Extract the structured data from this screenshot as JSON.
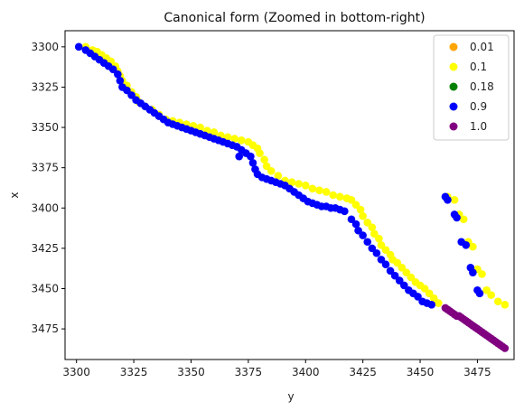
{
  "chart_data": {
    "type": "scatter",
    "title": "Canonical form (Zoomed in bottom-right)",
    "xlabel": "y",
    "ylabel": "x",
    "xlim": [
      3295,
      3491
    ],
    "ylim": [
      3494,
      3290
    ],
    "y_inverted": true,
    "xticks": [
      3300,
      3325,
      3350,
      3375,
      3400,
      3425,
      3450,
      3475
    ],
    "yticks": [
      3300,
      3325,
      3350,
      3375,
      3400,
      3425,
      3450,
      3475
    ],
    "grid": false,
    "legend_position": "top-right",
    "series": [
      {
        "name": "0.01",
        "color": "#ffa500",
        "points": []
      },
      {
        "name": "0.1",
        "color": "#ffff00",
        "points": [
          [
            3304,
            3300
          ],
          [
            3307,
            3302
          ],
          [
            3309,
            3303
          ],
          [
            3311,
            3305
          ],
          [
            3313,
            3307
          ],
          [
            3315,
            3309
          ],
          [
            3317,
            3312
          ],
          [
            3318,
            3315
          ],
          [
            3319,
            3318
          ],
          [
            3320,
            3321
          ],
          [
            3322,
            3324
          ],
          [
            3324,
            3328
          ],
          [
            3326,
            3331
          ],
          [
            3327,
            3334
          ],
          [
            3330,
            3337
          ],
          [
            3333,
            3339
          ],
          [
            3336,
            3342
          ],
          [
            3339,
            3345
          ],
          [
            3342,
            3346
          ],
          [
            3345,
            3347
          ],
          [
            3348,
            3348
          ],
          [
            3351,
            3349
          ],
          [
            3354,
            3350
          ],
          [
            3357,
            3352
          ],
          [
            3360,
            3353
          ],
          [
            3363,
            3355
          ],
          [
            3366,
            3356
          ],
          [
            3369,
            3357
          ],
          [
            3372,
            3358
          ],
          [
            3375,
            3359
          ],
          [
            3377,
            3361
          ],
          [
            3379,
            3363
          ],
          [
            3380,
            3366
          ],
          [
            3382,
            3370
          ],
          [
            3383,
            3374
          ],
          [
            3385,
            3377
          ],
          [
            3388,
            3380
          ],
          [
            3391,
            3383
          ],
          [
            3394,
            3384
          ],
          [
            3397,
            3385
          ],
          [
            3400,
            3386
          ],
          [
            3403,
            3388
          ],
          [
            3406,
            3389
          ],
          [
            3409,
            3390
          ],
          [
            3412,
            3392
          ],
          [
            3415,
            3393
          ],
          [
            3418,
            3394
          ],
          [
            3420,
            3395
          ],
          [
            3422,
            3398
          ],
          [
            3424,
            3401
          ],
          [
            3425,
            3405
          ],
          [
            3427,
            3409
          ],
          [
            3429,
            3412
          ],
          [
            3430,
            3416
          ],
          [
            3432,
            3419
          ],
          [
            3433,
            3423
          ],
          [
            3435,
            3426
          ],
          [
            3437,
            3429
          ],
          [
            3438,
            3432
          ],
          [
            3440,
            3434
          ],
          [
            3442,
            3437
          ],
          [
            3444,
            3440
          ],
          [
            3446,
            3443
          ],
          [
            3448,
            3446
          ],
          [
            3450,
            3448
          ],
          [
            3452,
            3450
          ],
          [
            3454,
            3453
          ],
          [
            3456,
            3456
          ],
          [
            3458,
            3459
          ],
          [
            3462,
            3393
          ],
          [
            3465,
            3395
          ],
          [
            3467,
            3404
          ],
          [
            3469,
            3407
          ],
          [
            3471,
            3421
          ],
          [
            3473,
            3424
          ],
          [
            3475,
            3438
          ],
          [
            3477,
            3441
          ],
          [
            3479,
            3451
          ],
          [
            3481,
            3454
          ],
          [
            3484,
            3458
          ],
          [
            3487,
            3460
          ]
        ]
      },
      {
        "name": "0.18",
        "color": "#008000",
        "points": []
      },
      {
        "name": "0.9",
        "color": "#0000ff",
        "points": [
          [
            3301,
            3300
          ],
          [
            3304,
            3302
          ],
          [
            3306,
            3304
          ],
          [
            3308,
            3306
          ],
          [
            3310,
            3308
          ],
          [
            3312,
            3310
          ],
          [
            3314,
            3312
          ],
          [
            3316,
            3314
          ],
          [
            3318,
            3317
          ],
          [
            3319,
            3321
          ],
          [
            3320,
            3325
          ],
          [
            3322,
            3327
          ],
          [
            3324,
            3330
          ],
          [
            3326,
            3333
          ],
          [
            3328,
            3335
          ],
          [
            3330,
            3337
          ],
          [
            3332,
            3339
          ],
          [
            3334,
            3341
          ],
          [
            3336,
            3343
          ],
          [
            3338,
            3345
          ],
          [
            3340,
            3347
          ],
          [
            3342,
            3348
          ],
          [
            3344,
            3349
          ],
          [
            3346,
            3350
          ],
          [
            3348,
            3351
          ],
          [
            3350,
            3352
          ],
          [
            3352,
            3353
          ],
          [
            3354,
            3354
          ],
          [
            3356,
            3355
          ],
          [
            3358,
            3356
          ],
          [
            3360,
            3357
          ],
          [
            3362,
            3358
          ],
          [
            3364,
            3359
          ],
          [
            3366,
            3360
          ],
          [
            3368,
            3361
          ],
          [
            3370,
            3362
          ],
          [
            3371,
            3368
          ],
          [
            3372,
            3364
          ],
          [
            3374,
            3366
          ],
          [
            3376,
            3368
          ],
          [
            3377,
            3372
          ],
          [
            3378,
            3376
          ],
          [
            3379,
            3379
          ],
          [
            3381,
            3381
          ],
          [
            3383,
            3382
          ],
          [
            3385,
            3383
          ],
          [
            3387,
            3384
          ],
          [
            3389,
            3385
          ],
          [
            3391,
            3386
          ],
          [
            3393,
            3388
          ],
          [
            3395,
            3390
          ],
          [
            3397,
            3392
          ],
          [
            3399,
            3394
          ],
          [
            3401,
            3396
          ],
          [
            3403,
            3397
          ],
          [
            3405,
            3398
          ],
          [
            3407,
            3399
          ],
          [
            3409,
            3399
          ],
          [
            3411,
            3400
          ],
          [
            3413,
            3400
          ],
          [
            3415,
            3401
          ],
          [
            3417,
            3402
          ],
          [
            3420,
            3407
          ],
          [
            3422,
            3410
          ],
          [
            3423,
            3414
          ],
          [
            3425,
            3417
          ],
          [
            3427,
            3421
          ],
          [
            3429,
            3425
          ],
          [
            3431,
            3428
          ],
          [
            3433,
            3432
          ],
          [
            3435,
            3435
          ],
          [
            3437,
            3439
          ],
          [
            3439,
            3442
          ],
          [
            3441,
            3445
          ],
          [
            3443,
            3448
          ],
          [
            3445,
            3451
          ],
          [
            3447,
            3453
          ],
          [
            3449,
            3455
          ],
          [
            3451,
            3458
          ],
          [
            3453,
            3459
          ],
          [
            3455,
            3460
          ],
          [
            3461,
            3393
          ],
          [
            3462,
            3395
          ],
          [
            3465,
            3404
          ],
          [
            3466,
            3406
          ],
          [
            3468,
            3421
          ],
          [
            3470,
            3423
          ],
          [
            3472,
            3437
          ],
          [
            3473,
            3440
          ],
          [
            3475,
            3451
          ],
          [
            3476,
            3453
          ]
        ]
      },
      {
        "name": "1.0",
        "color": "#800080",
        "points": [
          [
            3461,
            3462
          ],
          [
            3462,
            3463
          ],
          [
            3463,
            3464
          ],
          [
            3464,
            3465
          ],
          [
            3465,
            3466
          ],
          [
            3466,
            3467
          ],
          [
            3467,
            3467
          ],
          [
            3468,
            3468
          ],
          [
            3469,
            3469
          ],
          [
            3470,
            3470
          ],
          [
            3471,
            3471
          ],
          [
            3472,
            3472
          ],
          [
            3473,
            3473
          ],
          [
            3474,
            3474
          ],
          [
            3475,
            3475
          ],
          [
            3476,
            3476
          ],
          [
            3477,
            3477
          ],
          [
            3478,
            3478
          ],
          [
            3479,
            3479
          ],
          [
            3480,
            3480
          ],
          [
            3481,
            3481
          ],
          [
            3482,
            3482
          ],
          [
            3483,
            3483
          ],
          [
            3484,
            3484
          ],
          [
            3485,
            3485
          ],
          [
            3486,
            3486
          ],
          [
            3487,
            3487
          ]
        ]
      }
    ]
  }
}
